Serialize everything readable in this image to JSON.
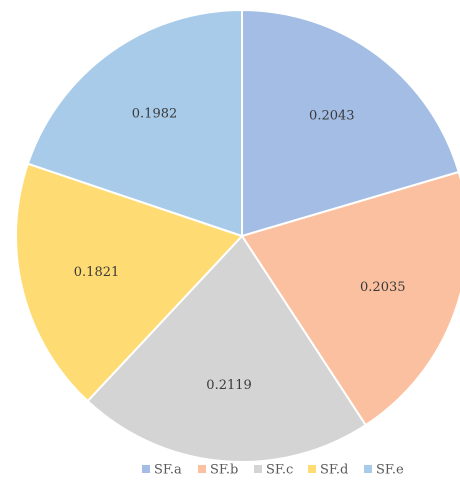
{
  "chart_data": {
    "type": "pie",
    "categories": [
      "SF.a",
      "SF.b",
      "SF.c",
      "SF.d",
      "SF.e"
    ],
    "values": [
      0.2043,
      0.2035,
      0.2119,
      0.1821,
      0.1982
    ],
    "value_labels": [
      "0.2043",
      "0.2035",
      "0.2119",
      "0.1821",
      "0.1982"
    ],
    "colors": [
      "#a3bde4",
      "#fbc0a0",
      "#d4d4d4",
      "#ffdb73",
      "#a8cbe9"
    ],
    "start_angle": "12 o'clock",
    "direction": "clockwise",
    "legend_position": "bottom",
    "title": ""
  }
}
